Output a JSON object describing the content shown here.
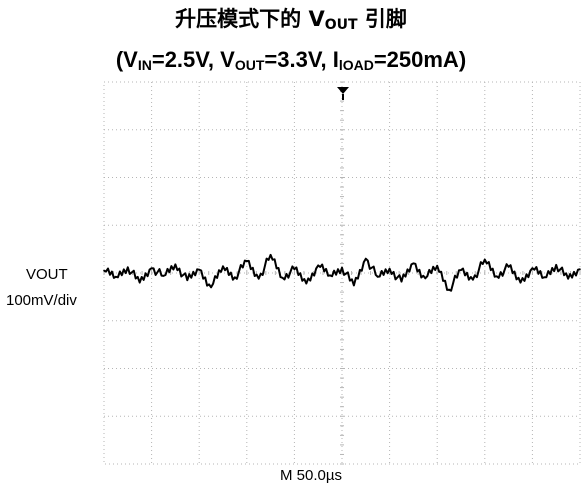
{
  "title": {
    "prefix": "升压模式下的 V",
    "sub": "OUT",
    "suffix": " 引脚"
  },
  "subtitle": {
    "open": "(V",
    "vin_sub": "IN",
    "vin_val": "=2.5V, V",
    "vout_sub": "OUT",
    "vout_val": "=3.3V, I",
    "iload_sub": "lOAD",
    "iload_val": "=250mA)"
  },
  "channel": {
    "name": "VOUT",
    "scale": "100mV/div"
  },
  "timebase": "M 50.0µs",
  "chart_data": {
    "type": "line",
    "title": "升压模式下的 VOUT 引脚",
    "subtitle": "(VIN=2.5V, VOUT=3.3V, IlOAD=250mA)",
    "xlabel": "M 50.0µs",
    "ylabel": "VOUT 100mV/div",
    "x_unit": "µs",
    "y_unit": "mV (AC-coupled, relative to trace baseline)",
    "xlim": [
      0,
      500
    ],
    "ylim": [
      -400,
      400
    ],
    "grid": true,
    "divisions": {
      "x": 10,
      "y": 8
    },
    "trigger_marker": "top-center",
    "series": [
      {
        "color": "#000000",
        "x": [
          0,
          12.5,
          25,
          37.5,
          50,
          62.5,
          75,
          87.5,
          100,
          112.5,
          125,
          137.5,
          150,
          162.5,
          175,
          187.5,
          200,
          212.5,
          225,
          237.5,
          250,
          262.5,
          275,
          287.5,
          300,
          312.5,
          325,
          337.5,
          350,
          362.5,
          375,
          387.5,
          400,
          412.5,
          425,
          437.5,
          450,
          462.5,
          475,
          487.5,
          500
        ],
        "y": [
          5,
          -8,
          12,
          -20,
          10,
          -6,
          18,
          -15,
          7,
          -30,
          14,
          -9,
          25,
          -12,
          38,
          -10,
          8,
          -22,
          16,
          -5,
          11,
          -26,
          30,
          -8,
          9,
          -18,
          20,
          -11,
          15,
          -35,
          6,
          -14,
          28,
          -7,
          13,
          -20,
          10,
          -9,
          17,
          -12,
          8
        ]
      }
    ]
  }
}
